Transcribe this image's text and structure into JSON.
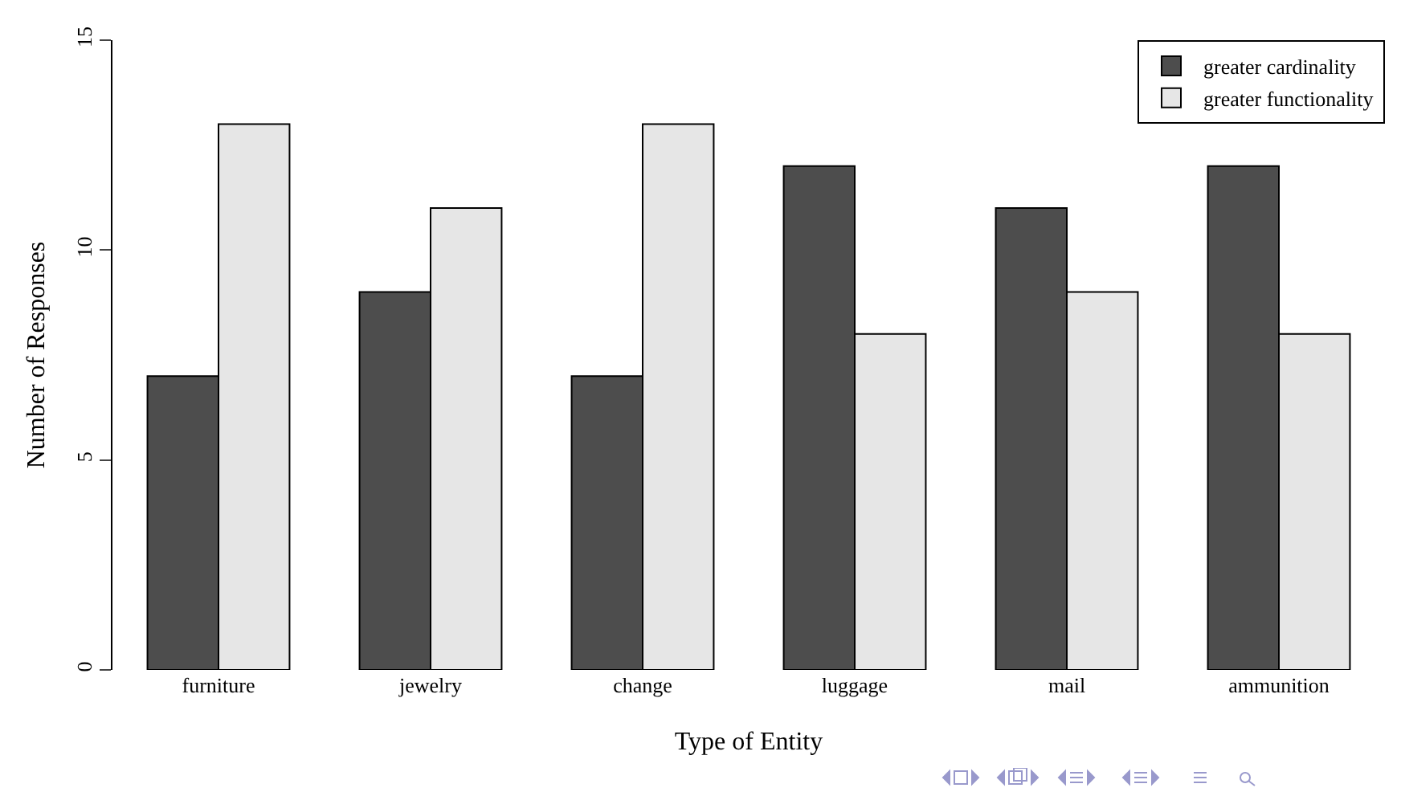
{
  "chart_data": {
    "type": "bar",
    "xlabel": "Type of Entity",
    "ylabel": "Number of Responses",
    "categories": [
      "furniture",
      "jewelry",
      "change",
      "luggage",
      "mail",
      "ammunition"
    ],
    "series": [
      {
        "name": "greater cardinality",
        "color": "#4d4d4d",
        "values": [
          7,
          9,
          7,
          12,
          11,
          12
        ]
      },
      {
        "name": "greater functionality",
        "color": "#e6e6e6",
        "values": [
          13,
          11,
          13,
          8,
          9,
          8
        ]
      }
    ],
    "ylim": [
      0,
      15
    ],
    "yticks": [
      0,
      5,
      10,
      15
    ],
    "grid": false,
    "legend": "top right"
  }
}
